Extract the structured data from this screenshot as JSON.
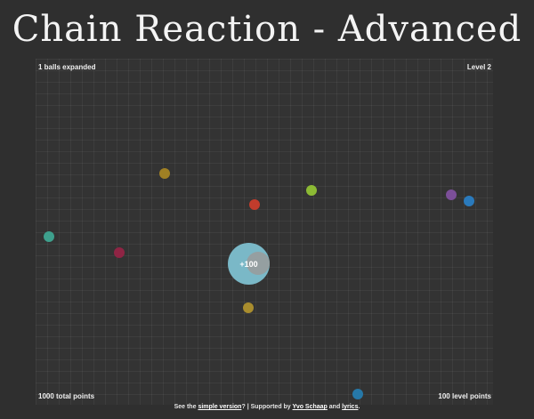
{
  "title": "Chain Reaction - Advanced",
  "stats": {
    "balls_expanded": "1 balls expanded",
    "level": "Level 2",
    "total_points": "1000 total points",
    "level_points": "100 level points"
  },
  "expanded_ball": {
    "label": "+100",
    "color": "#7ab8c7",
    "absorbed_color": "#9a9a9a"
  },
  "balls": [
    {
      "name": "ball-teal",
      "color": "#3ea08d"
    },
    {
      "name": "ball-magenta",
      "color": "#8f2444"
    },
    {
      "name": "ball-gold-upper",
      "color": "#a08024"
    },
    {
      "name": "ball-red",
      "color": "#c23c2c"
    },
    {
      "name": "ball-green",
      "color": "#8cba34"
    },
    {
      "name": "ball-purple",
      "color": "#7c4f99"
    },
    {
      "name": "ball-blue-right",
      "color": "#2a7abc"
    },
    {
      "name": "ball-gold-lower",
      "color": "#a98d2e"
    },
    {
      "name": "ball-blue-bottom",
      "color": "#2678a8"
    }
  ],
  "footer": {
    "prefix": "See the ",
    "link_simple": "simple version",
    "middle": "? | Supported by ",
    "link_author": "Yvo Schaap",
    "and": " and ",
    "link_lyrics": "lyrics",
    "suffix": "."
  }
}
